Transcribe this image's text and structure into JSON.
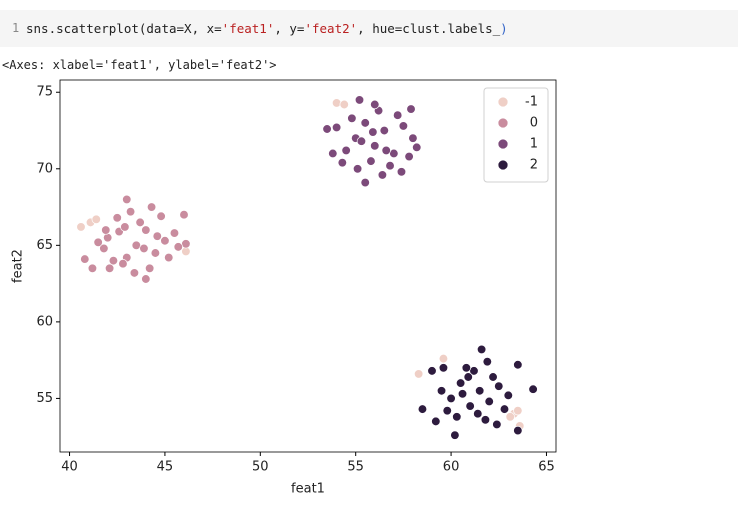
{
  "cell": {
    "line_number": "1",
    "code_tokens": [
      {
        "text": "sns.scatterplot(data=X, x=",
        "color": "#222222"
      },
      {
        "text": "'feat1'",
        "color": "#ba2121"
      },
      {
        "text": ", y=",
        "color": "#222222"
      },
      {
        "text": "'feat2'",
        "color": "#ba2121"
      },
      {
        "text": ", hue=clust.labels_",
        "color": "#222222"
      },
      {
        "text": ")",
        "color": "#3465c8"
      }
    ]
  },
  "output_text": "<Axes: xlabel='feat1', ylabel='feat2'>",
  "chart_data": {
    "type": "scatter",
    "x_label": "feat1",
    "y_label": "feat2",
    "xlim": [
      39.5,
      65.5
    ],
    "ylim": [
      51.5,
      75.8
    ],
    "xticks": [
      40,
      45,
      50,
      55,
      60,
      65
    ],
    "yticks": [
      55,
      60,
      65,
      70,
      75
    ],
    "legend": "upper right",
    "series": [
      {
        "name": "-1",
        "color": "#efcfc6",
        "x": [
          40.6,
          41.1,
          41.4,
          46.1,
          54.0,
          54.4,
          59.6,
          58.3,
          63.3,
          63.6,
          63.5,
          63.1
        ],
        "values": [
          66.2,
          66.5,
          66.7,
          64.6,
          74.3,
          74.2,
          57.6,
          56.6,
          54.0,
          53.2,
          54.2,
          53.8
        ]
      },
      {
        "name": "0",
        "color": "#c98c9e",
        "x": [
          42.0,
          42.5,
          43.0,
          43.5,
          44.0,
          44.5,
          45.0,
          43.2,
          42.8,
          44.2,
          41.8,
          45.5,
          43.7,
          42.3,
          44.8,
          41.5,
          43.0,
          44.0,
          45.2,
          42.6,
          43.9,
          44.6,
          42.1,
          46.0,
          46.1,
          41.2,
          40.8,
          43.4,
          44.3,
          42.9,
          45.7,
          41.9
        ],
        "values": [
          65.5,
          66.8,
          64.2,
          65.0,
          66.0,
          64.5,
          65.3,
          67.2,
          63.8,
          63.5,
          64.8,
          65.8,
          66.5,
          64.0,
          66.9,
          65.2,
          68.0,
          62.8,
          64.2,
          65.9,
          64.8,
          65.6,
          63.5,
          67.0,
          65.1,
          63.5,
          64.1,
          63.2,
          67.5,
          66.2,
          64.9,
          66.0
        ]
      },
      {
        "name": "1",
        "color": "#7c4a7a",
        "x": [
          55.0,
          55.5,
          56.0,
          56.5,
          57.0,
          54.5,
          55.8,
          56.2,
          55.2,
          57.5,
          54.0,
          58.0,
          56.8,
          55.5,
          53.8,
          57.8,
          56.0,
          55.3,
          54.8,
          57.2,
          56.6,
          55.9,
          54.3,
          57.4,
          53.5,
          58.2,
          56.4,
          55.1,
          57.9
        ],
        "values": [
          72.0,
          73.0,
          71.5,
          72.5,
          71.0,
          71.2,
          70.5,
          73.8,
          74.5,
          72.8,
          72.7,
          72.0,
          70.2,
          69.1,
          71.0,
          70.8,
          74.2,
          71.8,
          73.3,
          73.5,
          71.2,
          72.4,
          70.4,
          69.8,
          72.6,
          71.4,
          69.6,
          70.0,
          73.9
        ]
      },
      {
        "name": "2",
        "color": "#2d1b3e",
        "x": [
          60.0,
          60.5,
          61.0,
          61.5,
          62.0,
          60.3,
          61.2,
          59.5,
          62.5,
          60.8,
          59.0,
          63.0,
          61.8,
          60.2,
          58.5,
          63.5,
          64.3,
          61.6,
          59.8,
          62.2,
          60.6,
          61.4,
          59.2,
          62.8,
          60.9,
          61.9,
          59.6,
          62.4,
          63.5
        ],
        "values": [
          55.0,
          56.0,
          54.5,
          55.5,
          54.8,
          53.8,
          56.8,
          55.5,
          55.8,
          57.0,
          56.8,
          55.2,
          53.6,
          52.6,
          54.3,
          57.2,
          55.6,
          58.2,
          54.2,
          56.4,
          55.3,
          54.0,
          53.5,
          54.3,
          56.4,
          57.4,
          57.0,
          53.3,
          52.9
        ]
      }
    ]
  }
}
